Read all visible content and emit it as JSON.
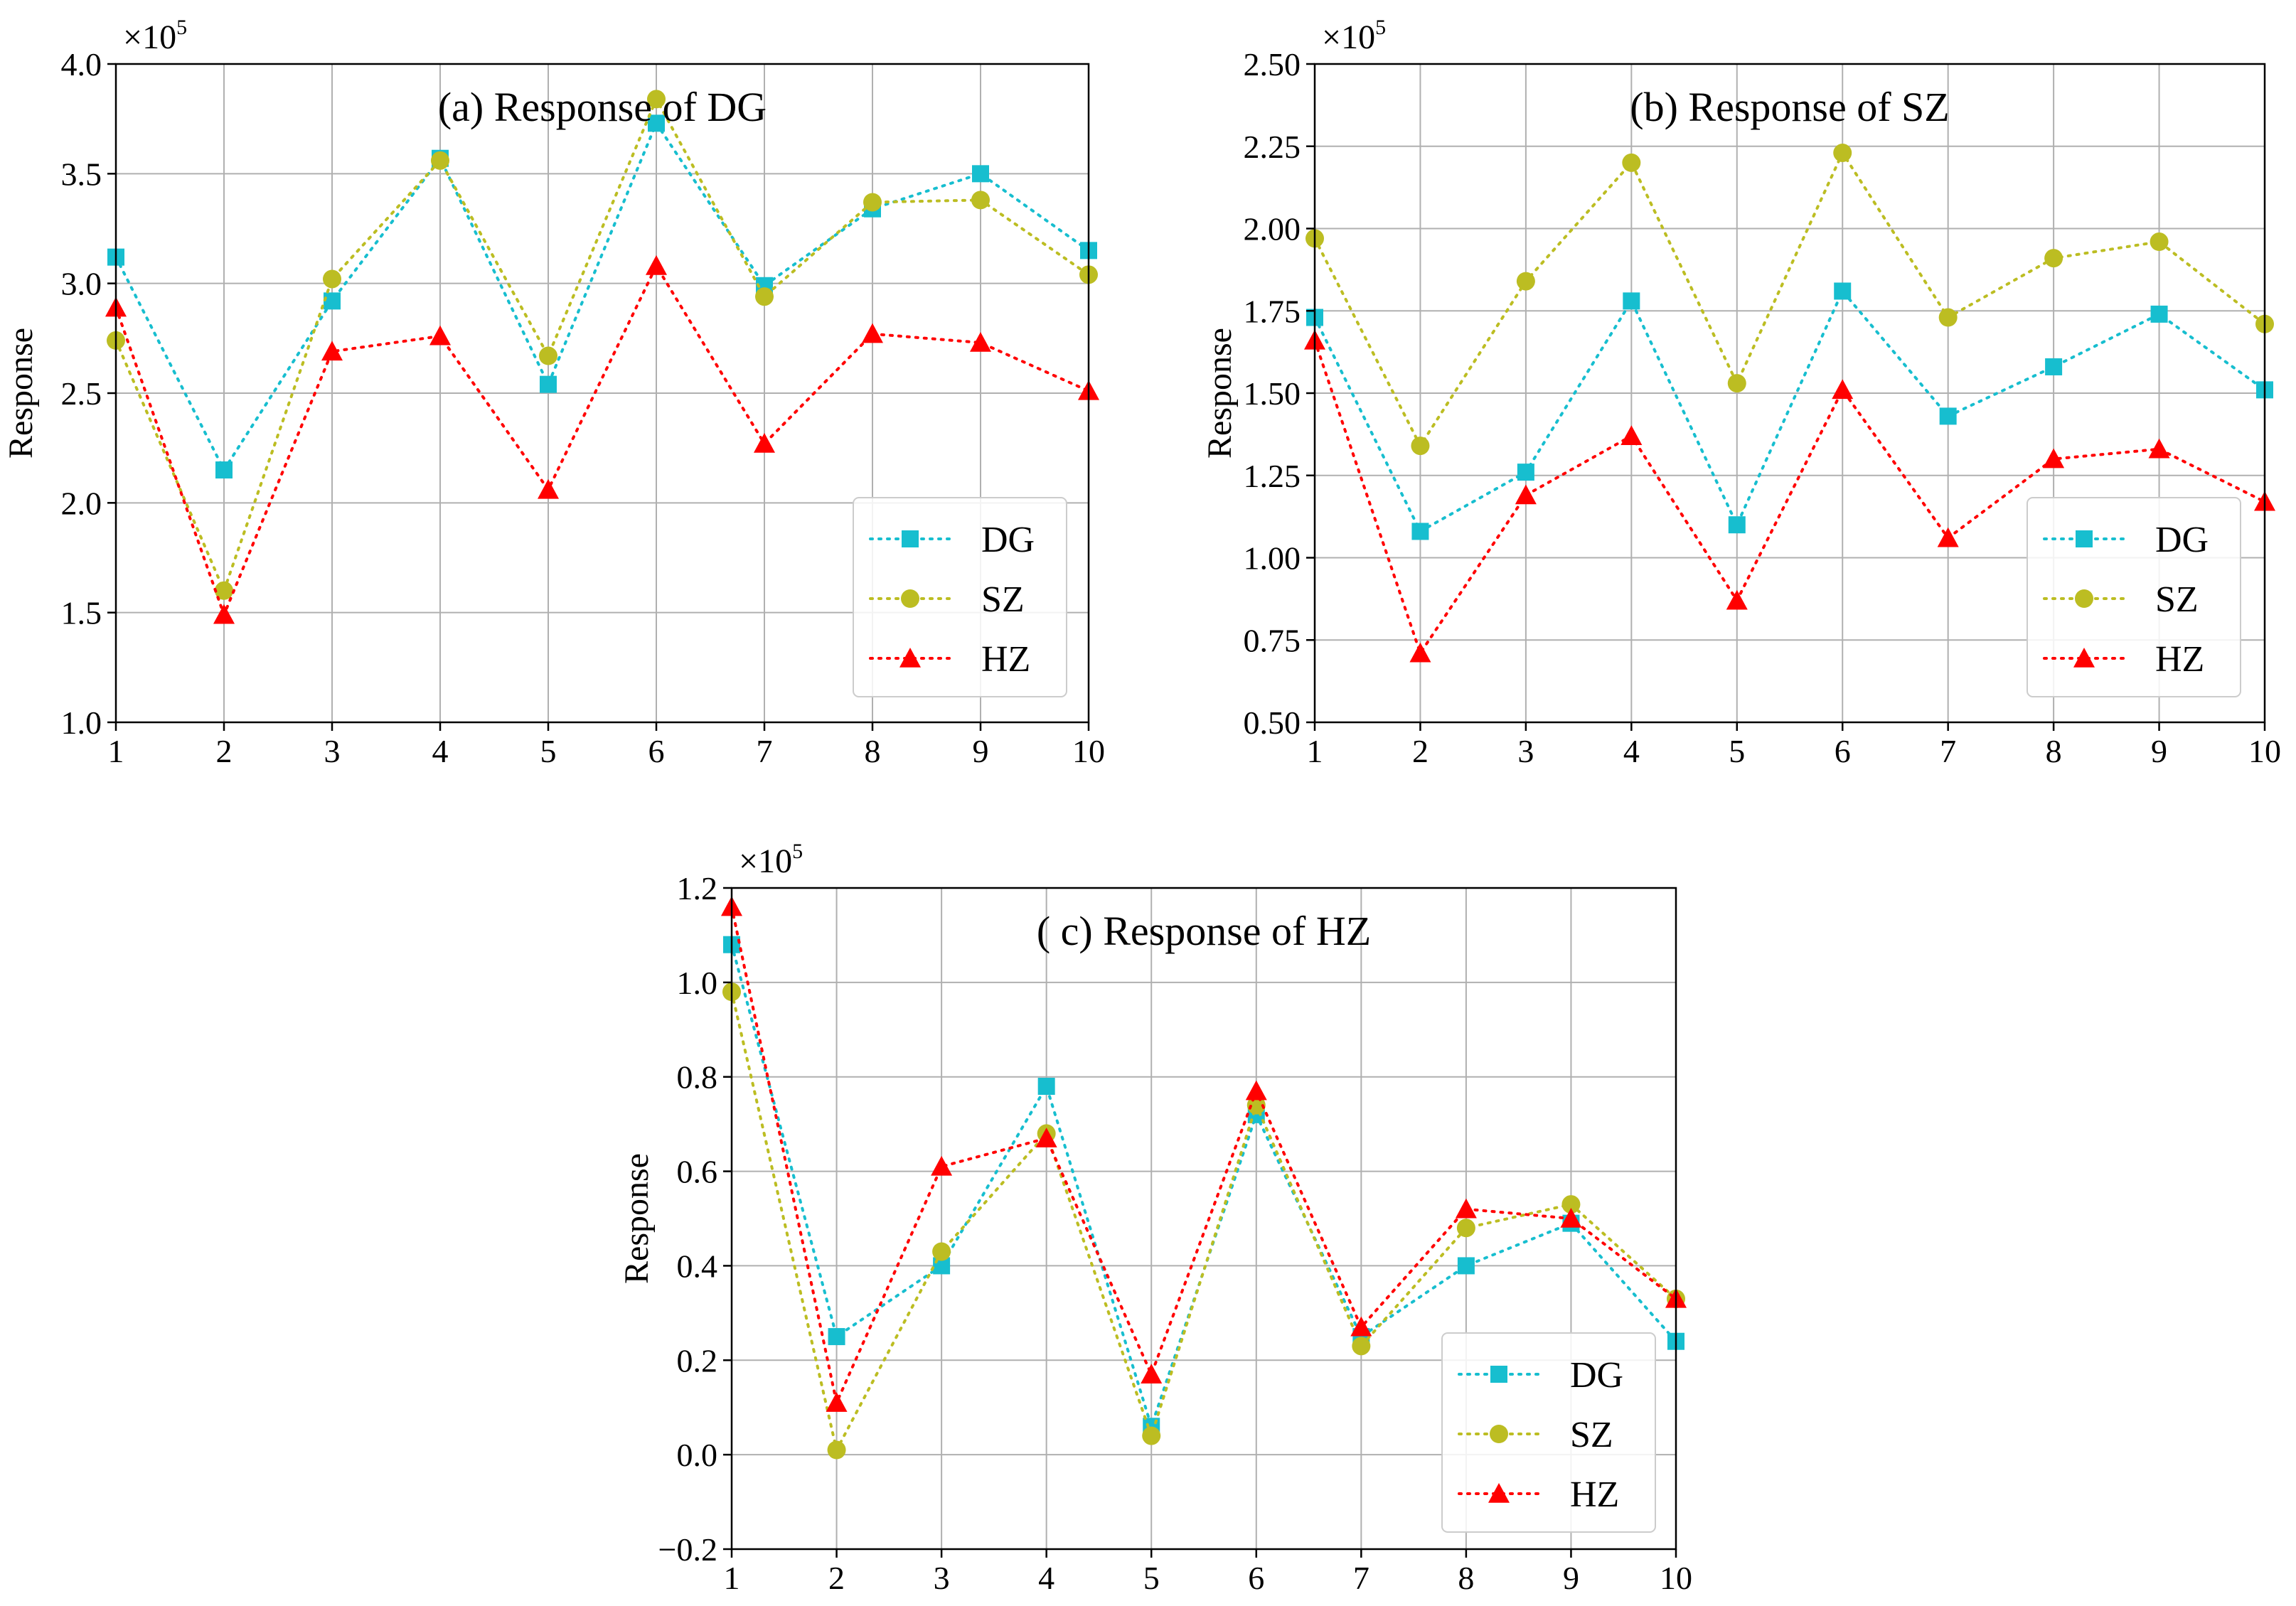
{
  "colors": {
    "DG": "#17becf",
    "SZ": "#bcbd22",
    "HZ": "#ff0000"
  },
  "markers": {
    "DG": "square",
    "SZ": "circle",
    "HZ": "triangle"
  },
  "chart_data": [
    {
      "type": "line",
      "title": "(a) Response of DG",
      "xlabel": "",
      "ylabel": "Response",
      "multiplier_base": "×10",
      "multiplier_exp": "5",
      "x": [
        1,
        2,
        3,
        4,
        5,
        6,
        7,
        8,
        9,
        10
      ],
      "xlim": [
        1,
        10
      ],
      "ylim": [
        1.0,
        4.0
      ],
      "yticks": [
        1.0,
        1.5,
        2.0,
        2.5,
        3.0,
        3.5,
        4.0
      ],
      "ytick_labels": [
        "1.0",
        "1.5",
        "2.0",
        "2.5",
        "3.0",
        "3.5",
        "4.0"
      ],
      "xtick_labels": [
        "1",
        "2",
        "3",
        "4",
        "5",
        "6",
        "7",
        "8",
        "9",
        "10"
      ],
      "legend": [
        "DG",
        "SZ",
        "HZ"
      ],
      "legend_position": "lower-right",
      "grid": true,
      "series": [
        {
          "name": "DG",
          "values": [
            3.12,
            2.15,
            2.92,
            3.57,
            2.54,
            3.73,
            2.99,
            3.34,
            3.5,
            3.15
          ]
        },
        {
          "name": "SZ",
          "values": [
            2.74,
            1.6,
            3.02,
            3.56,
            2.67,
            3.84,
            2.94,
            3.37,
            3.38,
            3.04
          ]
        },
        {
          "name": "HZ",
          "values": [
            2.89,
            1.49,
            2.69,
            2.76,
            2.06,
            3.08,
            2.27,
            2.77,
            2.73,
            2.51
          ]
        }
      ]
    },
    {
      "type": "line",
      "title": "(b) Response of SZ",
      "xlabel": "",
      "ylabel": "Response",
      "multiplier_base": "×10",
      "multiplier_exp": "5",
      "x": [
        1,
        2,
        3,
        4,
        5,
        6,
        7,
        8,
        9,
        10
      ],
      "xlim": [
        1,
        10
      ],
      "ylim": [
        0.5,
        2.5
      ],
      "yticks": [
        0.5,
        0.75,
        1.0,
        1.25,
        1.5,
        1.75,
        2.0,
        2.25,
        2.5
      ],
      "ytick_labels": [
        "0.50",
        "0.75",
        "1.00",
        "1.25",
        "1.50",
        "1.75",
        "2.00",
        "2.25",
        "2.50"
      ],
      "xtick_labels": [
        "1",
        "2",
        "3",
        "4",
        "5",
        "6",
        "7",
        "8",
        "9",
        "10"
      ],
      "legend": [
        "DG",
        "SZ",
        "HZ"
      ],
      "legend_position": "lower-right",
      "grid": true,
      "series": [
        {
          "name": "DG",
          "values": [
            1.73,
            1.08,
            1.26,
            1.78,
            1.1,
            1.81,
            1.43,
            1.58,
            1.74,
            1.51
          ]
        },
        {
          "name": "SZ",
          "values": [
            1.97,
            1.34,
            1.84,
            2.2,
            1.53,
            2.23,
            1.73,
            1.91,
            1.96,
            1.71
          ]
        },
        {
          "name": "HZ",
          "values": [
            1.66,
            0.71,
            1.19,
            1.37,
            0.87,
            1.51,
            1.06,
            1.3,
            1.33,
            1.17
          ]
        }
      ]
    },
    {
      "type": "line",
      "title": "( c) Response of HZ",
      "xlabel": "",
      "ylabel": "Response",
      "multiplier_base": "×10",
      "multiplier_exp": "5",
      "x": [
        1,
        2,
        3,
        4,
        5,
        6,
        7,
        8,
        9,
        10
      ],
      "xlim": [
        1,
        10
      ],
      "ylim": [
        -0.2,
        1.2
      ],
      "yticks": [
        -0.2,
        0.0,
        0.2,
        0.4,
        0.6,
        0.8,
        1.0,
        1.2
      ],
      "ytick_labels": [
        "−0.2",
        "0.0",
        "0.2",
        "0.4",
        "0.6",
        "0.8",
        "1.0",
        "1.2"
      ],
      "xtick_labels": [
        "1",
        "2",
        "3",
        "4",
        "5",
        "6",
        "7",
        "8",
        "9",
        "10"
      ],
      "legend": [
        "DG",
        "SZ",
        "HZ"
      ],
      "legend_position": "lower-right",
      "grid": true,
      "series": [
        {
          "name": "DG",
          "values": [
            1.08,
            0.25,
            0.4,
            0.78,
            0.06,
            0.72,
            0.25,
            0.4,
            0.49,
            0.24
          ]
        },
        {
          "name": "SZ",
          "values": [
            0.98,
            0.01,
            0.43,
            0.68,
            0.04,
            0.74,
            0.23,
            0.48,
            0.53,
            0.33
          ]
        },
        {
          "name": "HZ",
          "values": [
            1.16,
            0.11,
            0.61,
            0.67,
            0.17,
            0.77,
            0.27,
            0.52,
            0.5,
            0.33
          ]
        }
      ]
    }
  ]
}
